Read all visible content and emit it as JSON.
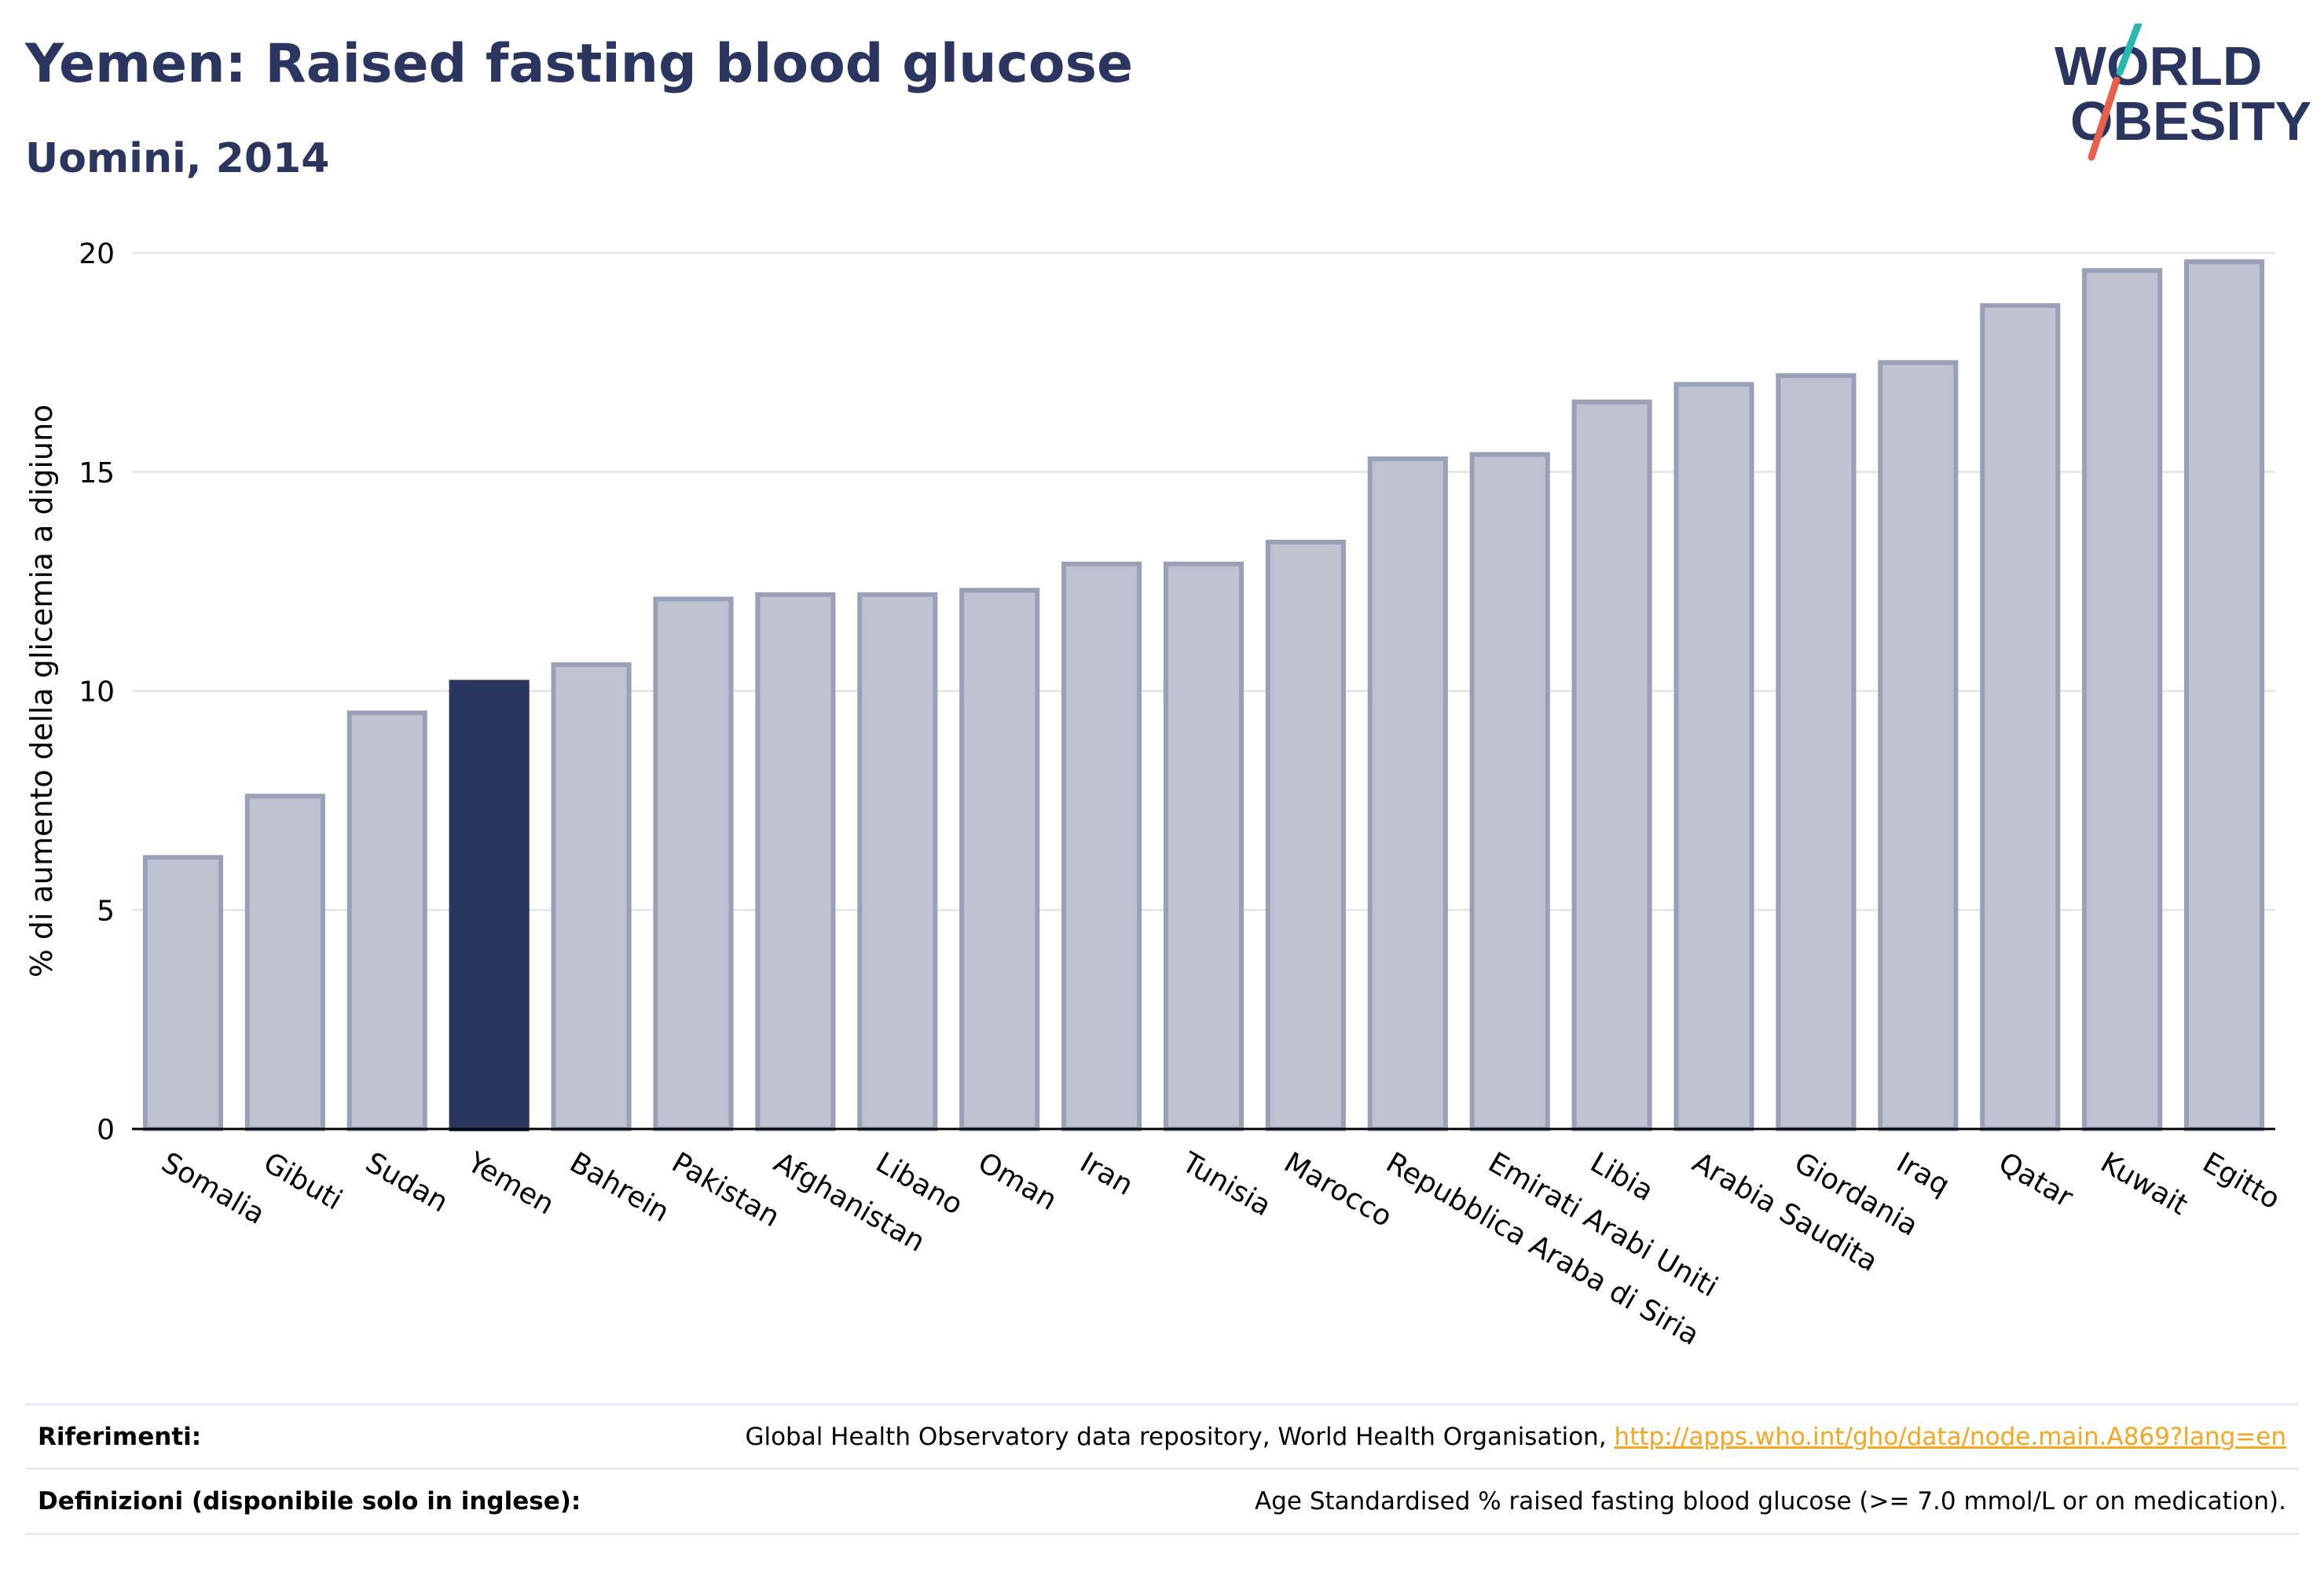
{
  "header": {
    "title": "Yemen: Raised fasting blood glucose",
    "subtitle": "Uomini, 2014"
  },
  "logo": {
    "line1": "WORLD",
    "line2": "OBESITY",
    "colors": {
      "text": "#2b3660",
      "slash_top": "#2ab7b0",
      "slash_bottom": "#e8604c"
    }
  },
  "chart_data": {
    "type": "bar",
    "ylabel": "% di aumento della glicemia a digiuno",
    "xlabel": "",
    "ylim": [
      0,
      20
    ],
    "yticks": [
      0,
      5,
      10,
      15,
      20
    ],
    "grid": true,
    "highlight": "Yemen",
    "colors": {
      "bar": "#bfc2d1",
      "bar_border": "#9aa0b8",
      "highlight": "#2b3660",
      "grid": "#e6e8ee",
      "axis": "#000000"
    },
    "categories": [
      "Somalia",
      "Gibuti",
      "Sudan",
      "Yemen",
      "Bahrein",
      "Pakistan",
      "Afghanistan",
      "Libano",
      "Oman",
      "Iran",
      "Tunisia",
      "Marocco",
      "Repubblica Araba di Siria",
      "Emirati Arabi Uniti",
      "Libia",
      "Arabia Saudita",
      "Giordania",
      "Iraq",
      "Qatar",
      "Kuwait",
      "Egitto"
    ],
    "values": [
      6.2,
      7.6,
      9.5,
      10.2,
      10.6,
      12.1,
      12.2,
      12.2,
      12.3,
      12.9,
      12.9,
      13.4,
      15.3,
      15.4,
      16.6,
      17.0,
      17.2,
      17.5,
      18.8,
      19.6,
      19.8
    ]
  },
  "footer": {
    "references_label": "Riferimenti:",
    "references_text": "Global Health Observatory data repository, World Health Organisation, ",
    "references_link": "http://apps.who.int/gho/data/node.main.A869?lang=en",
    "definitions_label": "Definizioni (disponibile solo in inglese):",
    "definitions_text": "Age Standardised % raised fasting blood glucose (>= 7.0 mmol/L or on medication)."
  }
}
